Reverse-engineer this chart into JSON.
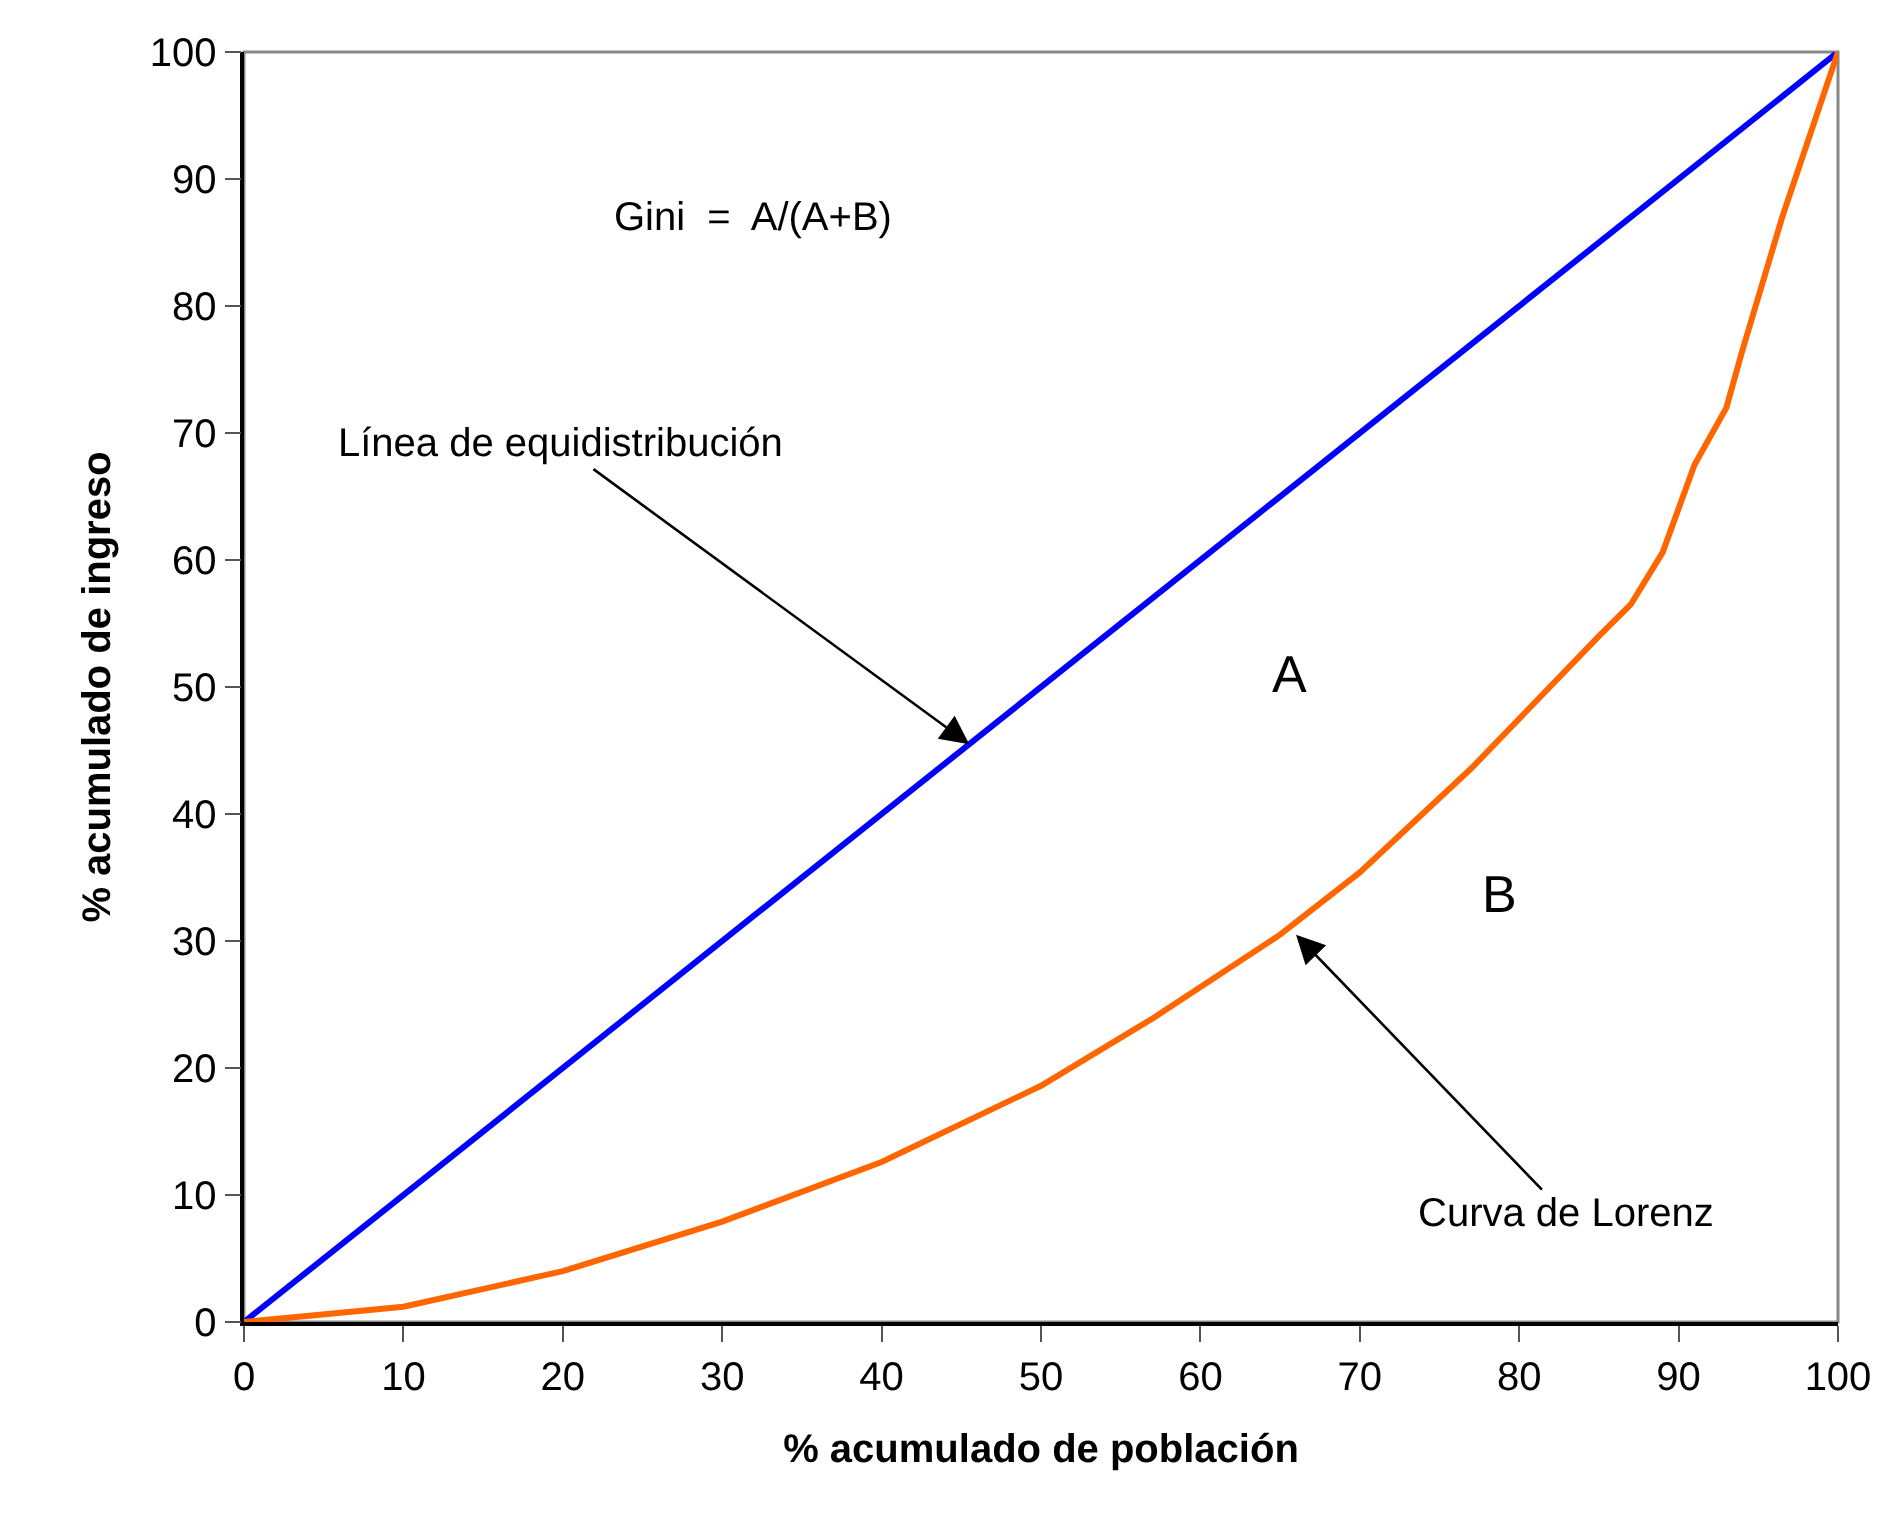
{
  "chart_data": {
    "type": "line",
    "xlabel": "% acumulado de población",
    "ylabel": "% acumulado de ingreso",
    "xlim": [
      0,
      100
    ],
    "ylim": [
      0,
      100
    ],
    "xticks": [
      0,
      10,
      20,
      30,
      40,
      50,
      60,
      70,
      80,
      90,
      100
    ],
    "yticks": [
      0,
      10,
      20,
      30,
      40,
      50,
      60,
      70,
      80,
      90,
      100
    ],
    "grid": false,
    "marker": "none",
    "line_style": "solid",
    "series": [
      {
        "color": "#0000ff",
        "x": [
          0,
          100
        ],
        "values": [
          0,
          100
        ]
      },
      {
        "color": "#ff6600",
        "x": [
          0,
          10,
          20,
          30,
          40,
          50,
          57,
          65,
          70,
          77,
          85,
          87,
          89,
          91,
          93,
          94,
          96.5,
          100
        ],
        "values": [
          0,
          1.2,
          4,
          7.9,
          12.6,
          18.6,
          23.9,
          30.5,
          35.4,
          43.6,
          54,
          56.5,
          60.6,
          67.5,
          72,
          76.5,
          87,
          100
        ]
      }
    ],
    "annotations": [
      "Gini  =  A/(A+B)",
      {
        "text": "Línea de equidistribución",
        "x": 45.5,
        "y": 45.5
      },
      "A",
      "B",
      {
        "text": "Curva de Lorenz",
        "x": 66,
        "y": 30.5
      }
    ]
  }
}
